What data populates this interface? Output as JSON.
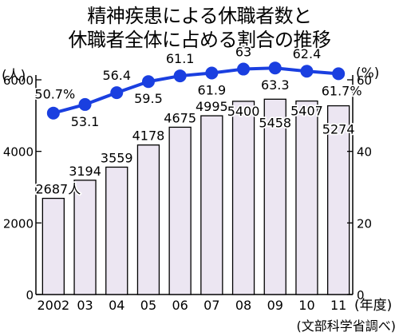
{
  "chart_data": {
    "type": "bar+line",
    "title_lines": [
      "精神疾患による休職者数と",
      "休職者全体に占める割合の推移"
    ],
    "categories": [
      "2002",
      "03",
      "04",
      "05",
      "06",
      "07",
      "08",
      "09",
      "10",
      "11"
    ],
    "x_unit_label": "(年度)",
    "left_axis": {
      "unit_label": "(人)",
      "ticks": [
        0,
        2000,
        4000,
        6000
      ],
      "ylim": [
        0,
        6000
      ]
    },
    "right_axis": {
      "unit_label": "(%)",
      "ticks": [
        0,
        20,
        40,
        60
      ],
      "ylim": [
        0,
        60
      ]
    },
    "bars": {
      "values": [
        2687,
        3194,
        3559,
        4178,
        4675,
        4995,
        5400,
        5458,
        5407,
        5274
      ],
      "labels": [
        "2687人",
        "3194",
        "3559",
        "4178",
        "4675",
        "4995",
        "5400",
        "5458",
        "5407",
        "5274"
      ],
      "color": "#ece6f2"
    },
    "line": {
      "values": [
        50.7,
        53.1,
        56.4,
        59.5,
        61.1,
        61.9,
        63.0,
        63.3,
        62.4,
        61.7
      ],
      "labels": [
        "50.7%",
        "53.1",
        "56.4",
        "59.5",
        "61.1",
        "61.9",
        "63",
        "63.3",
        "62.4",
        "61.7%"
      ],
      "color": "#1a3fe0"
    },
    "source": "(文部科学省調べ)"
  }
}
